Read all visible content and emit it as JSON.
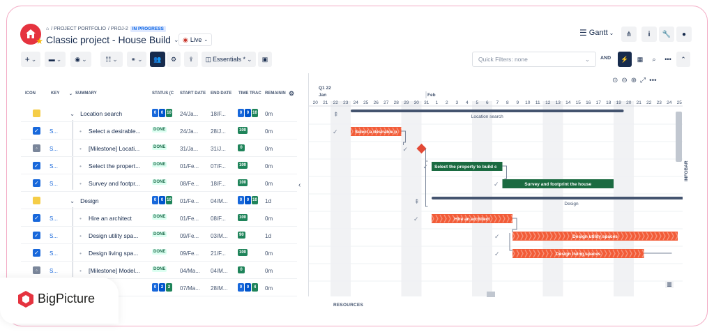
{
  "breadcrumb": {
    "home": "⌂",
    "items": [
      "/ PROJECT PORTFOLIO",
      "/ PROJ-2"
    ],
    "status": "IN PROGRESS"
  },
  "project": {
    "title": "Classic project - House Build",
    "live_label": "Live"
  },
  "view": {
    "label": "Gantt"
  },
  "toolbar": {
    "essentials_label": "Essentials *",
    "quick_filters_placeholder": "Quick Filters: none",
    "and_label": "AND"
  },
  "columns": {
    "icon": "ICON",
    "key": "KEY",
    "summary": "SUMMARY",
    "status": "STATUS (C",
    "start": "START DATE",
    "end": "END DATE",
    "time": "TIME TRAC",
    "remaining": "REMAININ"
  },
  "rows": [
    {
      "type": "summary",
      "key": "",
      "summary": "Location search",
      "status": "stack",
      "start": "24/Ja...",
      "end": "18/F...",
      "time": "stack",
      "remaining": "0m"
    },
    {
      "type": "task",
      "key": "S...",
      "summary": "Select a desirable...",
      "status": "DONE",
      "start": "24/Ja...",
      "end": "28/J...",
      "time": "100",
      "remaining": "0m"
    },
    {
      "type": "milestone",
      "key": "S...",
      "summary": "[Milestone] Locati...",
      "status": "DONE",
      "start": "31/Ja...",
      "end": "31/J...",
      "time": "0",
      "remaining": "0m"
    },
    {
      "type": "task",
      "key": "S...",
      "summary": "Select the propert...",
      "status": "DONE",
      "start": "01/Fe...",
      "end": "07/F...",
      "time": "100",
      "remaining": "0m"
    },
    {
      "type": "task",
      "key": "S...",
      "summary": "Survey and footpr...",
      "status": "DONE",
      "start": "08/Fe...",
      "end": "18/F...",
      "time": "100",
      "remaining": "0m"
    },
    {
      "type": "summary",
      "key": "",
      "summary": "Design",
      "status": "stack",
      "start": "01/Fe...",
      "end": "04/M...",
      "time": "stack",
      "remaining": "1d"
    },
    {
      "type": "task",
      "key": "S...",
      "summary": "Hire an architect",
      "status": "DONE",
      "start": "01/Fe...",
      "end": "08/F...",
      "time": "100",
      "remaining": "0m"
    },
    {
      "type": "task",
      "key": "S...",
      "summary": "Design utility spa...",
      "status": "DONE",
      "start": "09/Fe...",
      "end": "03/M...",
      "time": "90",
      "remaining": "1d"
    },
    {
      "type": "task",
      "key": "S...",
      "summary": "Design living spa...",
      "status": "DONE",
      "start": "09/Fe...",
      "end": "21/F...",
      "time": "100",
      "remaining": "0m"
    },
    {
      "type": "milestone",
      "key": "S...",
      "summary": "[Milestone] Model...",
      "status": "DONE",
      "start": "04/Ma...",
      "end": "04/M...",
      "time": "0",
      "remaining": "0m"
    },
    {
      "type": "partial",
      "key": "",
      "summary": "",
      "status": "stack",
      "start": "07/Ma...",
      "end": "28/M...",
      "time": "stack",
      "remaining": "0m"
    }
  ],
  "stack_counts": {
    "status": [
      "0",
      "0",
      "10"
    ],
    "time": [
      "0",
      "0",
      "10"
    ],
    "last_status": [
      "0",
      "2",
      "2"
    ],
    "last_time": [
      "0",
      "0",
      "4"
    ]
  },
  "gantt": {
    "quarter": "Q1 22",
    "month_jan": "Jan",
    "month_feb": "Feb",
    "days": [
      "20",
      "21",
      "22",
      "23",
      "24",
      "25",
      "26",
      "27",
      "28",
      "29",
      "30",
      "31",
      "1",
      "2",
      "3",
      "4",
      "5",
      "6",
      "7",
      "8",
      "9",
      "10",
      "11",
      "12",
      "13",
      "14",
      "15",
      "16",
      "17",
      "18",
      "19",
      "20",
      "21",
      "22",
      "23",
      "24",
      "25"
    ],
    "bars": {
      "location_search": "Location search",
      "select_desirable": "Select a desirable p",
      "select_property": "Select the property to build c",
      "survey": "Survey and footprint the house",
      "design": "Design",
      "hire_architect": "Hire an architect",
      "design_utility": "Design utility spaces",
      "design_living": "Design living spaces"
    }
  },
  "labels": {
    "resources": "RESOURCES",
    "infobar": "INFOBAR",
    "brand": "BigPicture"
  },
  "colors": {
    "accent": "#1868db",
    "done_green": "#1f845a",
    "task_red": "#f25c38",
    "dark_green": "#1b6b41",
    "summary": "#44546f",
    "brand_pink": "#e5333f"
  }
}
